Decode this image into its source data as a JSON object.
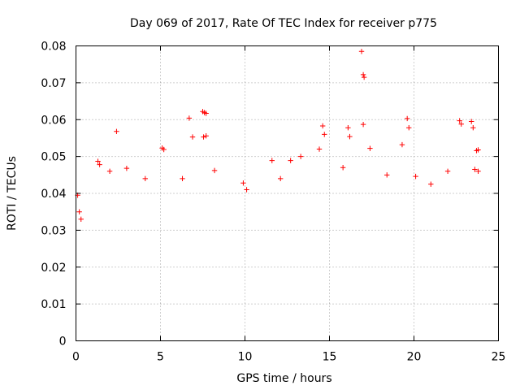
{
  "chart_data": {
    "type": "scatter",
    "title": "Day 069 of 2017, Rate Of TEC Index for receiver p775",
    "xlabel": "GPS time / hours",
    "ylabel": "ROTI / TECUs",
    "xlim": [
      0,
      25
    ],
    "ylim": [
      0,
      0.08
    ],
    "xticks": [
      0,
      5,
      10,
      15,
      20,
      25
    ],
    "yticks": [
      0,
      0.01,
      0.02,
      0.03,
      0.04,
      0.05,
      0.06,
      0.07,
      0.08
    ],
    "xtick_labels": [
      "0",
      "5",
      "10",
      "15",
      "20",
      "25"
    ],
    "ytick_labels": [
      "0",
      "0.01",
      "0.02",
      "0.03",
      "0.04",
      "0.05",
      "0.06",
      "0.07",
      "0.08"
    ],
    "grid": true,
    "marker": "+",
    "series_color": "#ff0000",
    "series": [
      {
        "name": "ROTI",
        "points": [
          [
            16.9,
            0.0785
          ],
          [
            17.0,
            0.0722
          ],
          [
            17.05,
            0.0715
          ],
          [
            2.4,
            0.0568
          ],
          [
            6.7,
            0.0604
          ],
          [
            7.5,
            0.0622
          ],
          [
            7.6,
            0.0619
          ],
          [
            7.7,
            0.0617
          ],
          [
            7.55,
            0.0553
          ],
          [
            7.7,
            0.0556
          ],
          [
            5.1,
            0.0523
          ],
          [
            5.2,
            0.0519
          ],
          [
            6.9,
            0.0553
          ],
          [
            14.6,
            0.0583
          ],
          [
            14.7,
            0.056
          ],
          [
            16.1,
            0.0578
          ],
          [
            17.0,
            0.0587
          ],
          [
            16.2,
            0.0554
          ],
          [
            19.6,
            0.0603
          ],
          [
            19.7,
            0.0578
          ],
          [
            22.7,
            0.0597
          ],
          [
            22.8,
            0.0588
          ],
          [
            23.4,
            0.0595
          ],
          [
            23.5,
            0.0578
          ],
          [
            23.7,
            0.0516
          ],
          [
            23.8,
            0.0518
          ],
          [
            19.3,
            0.0532
          ],
          [
            13.3,
            0.05
          ],
          [
            14.4,
            0.052
          ],
          [
            17.4,
            0.0522
          ],
          [
            11.6,
            0.0489
          ],
          [
            12.7,
            0.0489
          ],
          [
            1.3,
            0.0487
          ],
          [
            1.4,
            0.0478
          ],
          [
            3.0,
            0.0468
          ],
          [
            8.2,
            0.0462
          ],
          [
            0.1,
            0.0395
          ],
          [
            0.2,
            0.035
          ],
          [
            0.3,
            0.033
          ],
          [
            9.9,
            0.0428
          ],
          [
            10.1,
            0.041
          ],
          [
            20.1,
            0.0446
          ],
          [
            21.0,
            0.0425
          ],
          [
            22.0,
            0.046
          ],
          [
            23.6,
            0.0465
          ],
          [
            23.8,
            0.046
          ],
          [
            18.4,
            0.045
          ],
          [
            15.8,
            0.047
          ],
          [
            12.1,
            0.044
          ],
          [
            4.1,
            0.044
          ],
          [
            6.3,
            0.044
          ],
          [
            2.0,
            0.046
          ]
        ]
      }
    ]
  }
}
